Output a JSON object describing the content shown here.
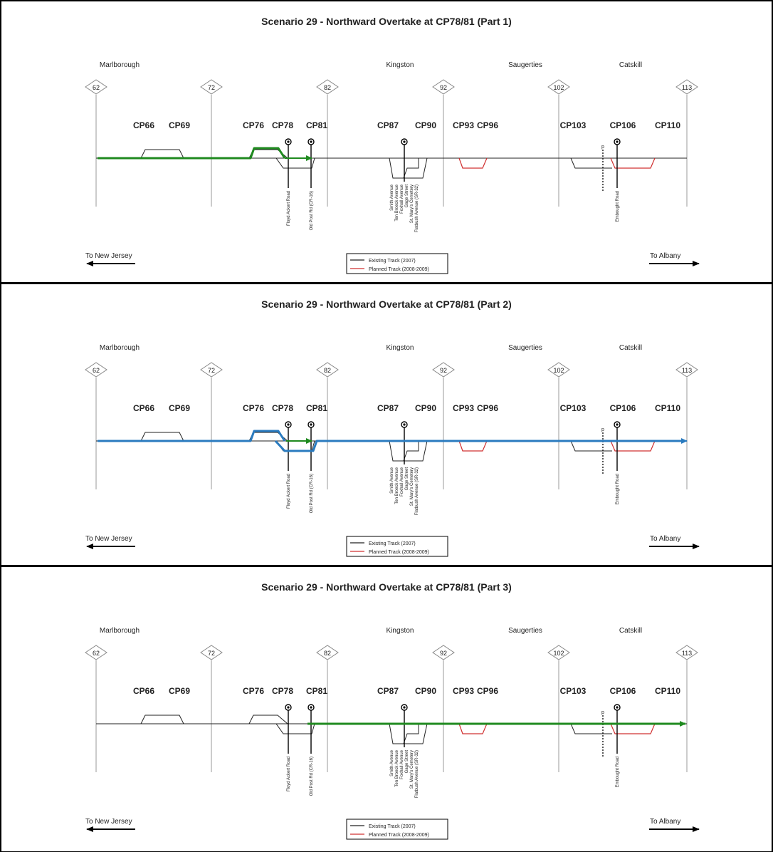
{
  "panels": [
    {
      "title": "Scenario 29 - Northward Overtake at CP78/81 (Part 1)"
    },
    {
      "title": "Scenario 29 - Northward Overtake at CP78/81 (Part 2)"
    },
    {
      "title": "Scenario 29 - Northward Overtake at CP78/81 (Part 3)"
    }
  ],
  "towns": [
    "Marlborough",
    "Kingston",
    "Saugerties",
    "Catskill"
  ],
  "mileposts": [
    "62",
    "72",
    "82",
    "92",
    "102",
    "113"
  ],
  "control_points": [
    "CP66",
    "CP69",
    "CP76",
    "CP78",
    "CP81",
    "CP87",
    "CP90",
    "CP93",
    "CP96",
    "CP103",
    "CP106",
    "CP110"
  ],
  "crossing_labels": {
    "floyd": "Floyd Ackert Road",
    "oldpost": "Old Post Rd (CR-16)",
    "kingston_streets": [
      "Smith Avenue",
      "Ten Broeck Avenue",
      "Foxhall Avenue",
      "Gage Street",
      "St. Mary's Cemetery",
      "Flatbush Avenue (SR-32)"
    ],
    "embought": "Embought Road"
  },
  "signal_letter": "p",
  "directions": {
    "south": "To New Jersey",
    "north": "To Albany"
  },
  "legend": {
    "existing": "Existing Track (2007)",
    "planned": "Planned Track (2008-2009)"
  },
  "colors": {
    "existing_track": "#222222",
    "planned_track": "#d03030",
    "train_green": "#1f8a1f",
    "train_blue": "#2a7bbf",
    "frame": "#000000",
    "grid": "#999999"
  }
}
